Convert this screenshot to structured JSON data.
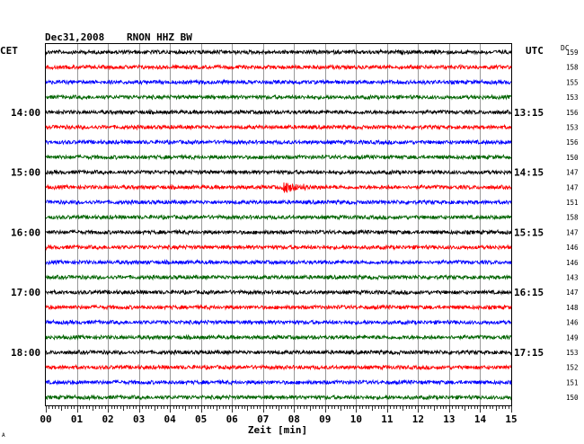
{
  "header": {
    "date": "Dec31,2008",
    "station": "RNON HHZ BW",
    "left_tz": "CET",
    "right_tz": "UTC",
    "dc_label": "DC",
    "corner_mark": "A"
  },
  "colors": {
    "trace_cycle": [
      "#000000",
      "#ff0000",
      "#0000ff",
      "#006400"
    ],
    "grid": "#000000",
    "background": "#ffffff"
  },
  "chart_data": {
    "type": "line",
    "subtype": "helicorder",
    "title": "Dec31,2008 RNON HHZ BW",
    "xlabel": "Zeit [min]",
    "xlim": [
      0,
      15
    ],
    "x_ticks": [
      "00",
      "01",
      "02",
      "03",
      "04",
      "05",
      "06",
      "07",
      "08",
      "09",
      "10",
      "11",
      "12",
      "13",
      "14",
      "15"
    ],
    "trace_count": 24,
    "minutes_per_trace": 15,
    "left_time_labels": [
      {
        "trace": 4,
        "label": "14:00"
      },
      {
        "trace": 8,
        "label": "15:00"
      },
      {
        "trace": 12,
        "label": "16:00"
      },
      {
        "trace": 16,
        "label": "17:00"
      },
      {
        "trace": 20,
        "label": "18:00"
      }
    ],
    "right_time_labels": [
      {
        "trace": 4,
        "label": "13:15"
      },
      {
        "trace": 8,
        "label": "14:15"
      },
      {
        "trace": 12,
        "label": "15:15"
      },
      {
        "trace": 16,
        "label": "16:15"
      },
      {
        "trace": 20,
        "label": "17:15"
      }
    ],
    "dc_offsets": [
      159,
      158,
      155,
      153,
      156,
      153,
      156,
      150,
      147,
      147,
      151,
      158,
      147,
      146,
      146,
      143,
      147,
      148,
      146,
      149,
      153,
      152,
      151,
      150
    ],
    "event": {
      "trace": 9,
      "minute": 7.7
    }
  }
}
